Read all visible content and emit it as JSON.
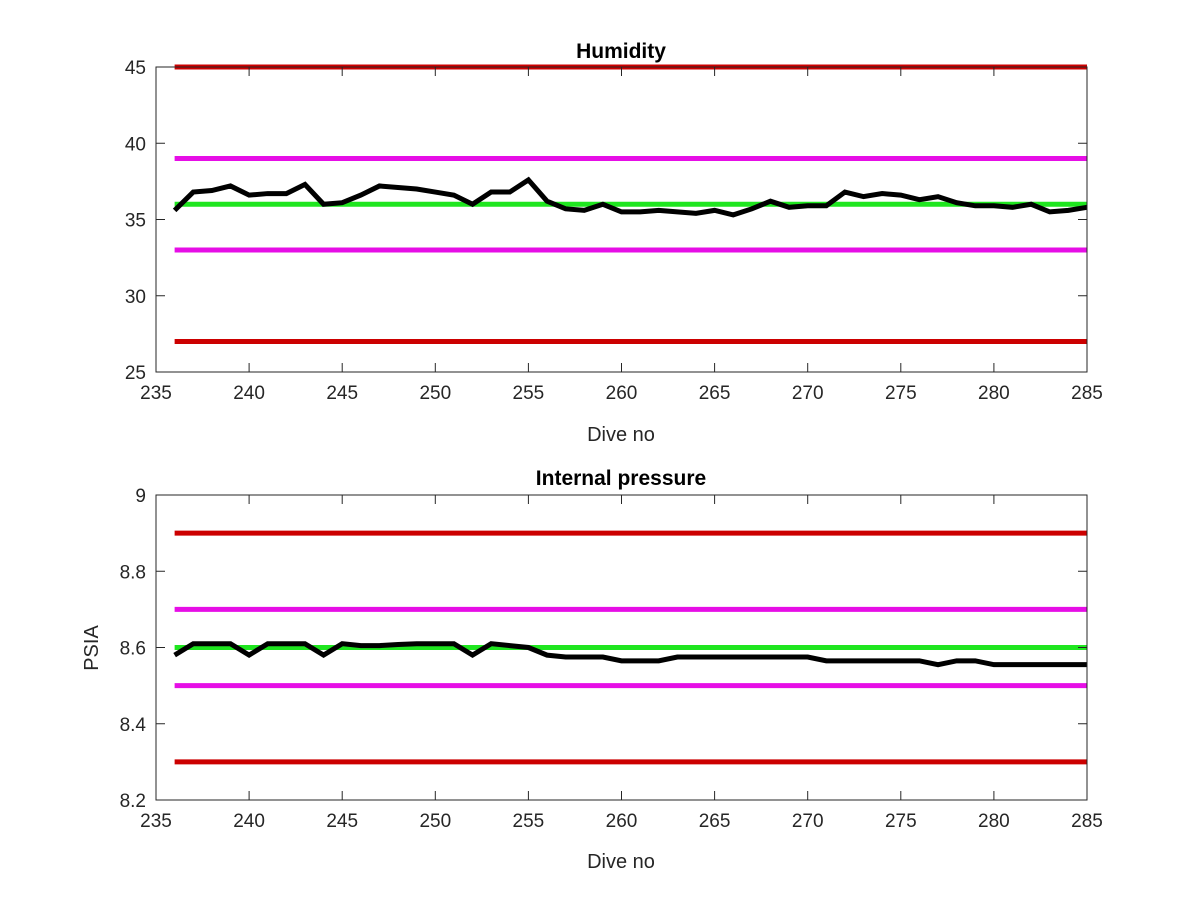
{
  "chart_data": [
    {
      "type": "line",
      "title": "Humidity",
      "xlabel": "Dive no",
      "ylabel": "",
      "xlim": [
        235,
        285
      ],
      "ylim": [
        25,
        45
      ],
      "xticks": [
        235,
        240,
        245,
        250,
        255,
        260,
        265,
        270,
        275,
        280,
        285
      ],
      "yticks": [
        25,
        30,
        35,
        40,
        45
      ],
      "ytick_labels": [
        "25",
        "30",
        "35",
        "40",
        "45"
      ],
      "grid": false,
      "reference_lines": [
        {
          "y": 45,
          "color": "#cc0000",
          "x": [
            236,
            285
          ]
        },
        {
          "y": 27,
          "color": "#cc0000",
          "x": [
            236,
            285
          ]
        },
        {
          "y": 39,
          "color": "#e60ee6",
          "x": [
            236,
            285
          ]
        },
        {
          "y": 33,
          "color": "#e60ee6",
          "x": [
            236,
            285
          ]
        },
        {
          "y": 36,
          "color": "#1fe61f",
          "x": [
            236,
            285
          ]
        }
      ],
      "series": [
        {
          "color": "#000000",
          "x": [
            236,
            237,
            238,
            239,
            240,
            241,
            242,
            243,
            244,
            245,
            246,
            247,
            248,
            249,
            250,
            251,
            252,
            253,
            254,
            255,
            256,
            257,
            258,
            259,
            260,
            261,
            262,
            263,
            264,
            265,
            266,
            267,
            268,
            269,
            270,
            271,
            272,
            273,
            274,
            275,
            276,
            277,
            278,
            279,
            280,
            281,
            282,
            283,
            284,
            285
          ],
          "values": [
            35.6,
            36.8,
            36.9,
            37.2,
            36.6,
            36.7,
            36.7,
            37.3,
            36.0,
            36.1,
            36.6,
            37.2,
            37.1,
            37.0,
            36.8,
            36.6,
            36.0,
            36.8,
            36.8,
            37.6,
            36.2,
            35.7,
            35.6,
            36.0,
            35.5,
            35.5,
            35.6,
            35.5,
            35.4,
            35.6,
            35.3,
            35.7,
            36.2,
            35.8,
            35.9,
            35.9,
            36.8,
            36.5,
            36.7,
            36.6,
            36.3,
            36.5,
            36.1,
            35.9,
            35.9,
            35.8,
            36.0,
            35.5,
            35.6,
            35.8
          ]
        }
      ]
    },
    {
      "type": "line",
      "title": "Internal pressure",
      "xlabel": "Dive no",
      "ylabel": "PSIA",
      "xlim": [
        235,
        285
      ],
      "ylim": [
        8.2,
        9
      ],
      "xticks": [
        235,
        240,
        245,
        250,
        255,
        260,
        265,
        270,
        275,
        280,
        285
      ],
      "yticks": [
        8.2,
        8.4,
        8.6,
        8.8,
        9
      ],
      "ytick_labels": [
        "8.2",
        "8.4",
        "8.6",
        "8.8",
        "9"
      ],
      "grid": false,
      "reference_lines": [
        {
          "y": 8.9,
          "color": "#cc0000",
          "x": [
            236,
            285
          ]
        },
        {
          "y": 8.3,
          "color": "#cc0000",
          "x": [
            236,
            285
          ]
        },
        {
          "y": 8.7,
          "color": "#e60ee6",
          "x": [
            236,
            285
          ]
        },
        {
          "y": 8.5,
          "color": "#e60ee6",
          "x": [
            236,
            285
          ]
        },
        {
          "y": 8.6,
          "color": "#1fe61f",
          "x": [
            236,
            285
          ]
        }
      ],
      "series": [
        {
          "color": "#000000",
          "x": [
            236,
            237,
            238,
            239,
            240,
            241,
            242,
            243,
            244,
            245,
            246,
            247,
            248,
            249,
            250,
            251,
            252,
            253,
            254,
            255,
            256,
            257,
            258,
            259,
            260,
            261,
            262,
            263,
            264,
            265,
            266,
            267,
            268,
            269,
            270,
            271,
            272,
            273,
            274,
            275,
            276,
            277,
            278,
            279,
            280,
            281,
            282,
            283,
            284,
            285
          ],
          "values": [
            8.58,
            8.61,
            8.61,
            8.61,
            8.58,
            8.61,
            8.61,
            8.61,
            8.58,
            8.61,
            8.605,
            8.605,
            8.608,
            8.61,
            8.61,
            8.61,
            8.58,
            8.61,
            8.605,
            8.6,
            8.58,
            8.575,
            8.575,
            8.575,
            8.565,
            8.565,
            8.565,
            8.575,
            8.575,
            8.575,
            8.575,
            8.575,
            8.575,
            8.575,
            8.575,
            8.565,
            8.565,
            8.565,
            8.565,
            8.565,
            8.565,
            8.555,
            8.565,
            8.565,
            8.555,
            8.555,
            8.555,
            8.555,
            8.555,
            8.555
          ]
        }
      ]
    }
  ]
}
